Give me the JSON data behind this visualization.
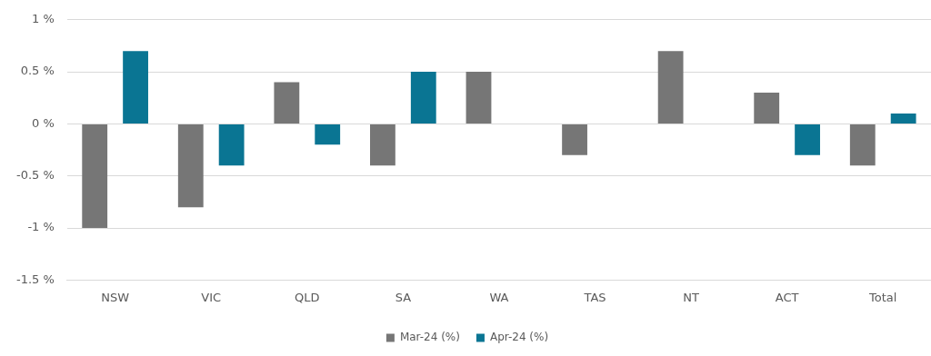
{
  "chart_data": {
    "type": "bar",
    "categories": [
      "NSW",
      "VIC",
      "QLD",
      "SA",
      "WA",
      "TAS",
      "NT",
      "ACT",
      "Total"
    ],
    "series": [
      {
        "name": "Mar-24 (%)",
        "color": "#767676",
        "values": [
          -1,
          -0.8,
          0.4,
          -0.4,
          0.5,
          -0.3,
          0.7,
          0.3,
          -0.4
        ]
      },
      {
        "name": "Apr-24 (%)",
        "color": "#0a7593",
        "values": [
          0.7,
          -0.4,
          -0.2,
          0.5,
          0,
          0,
          0,
          -0.3,
          0.1
        ]
      }
    ],
    "ylim": [
      -1.5,
      1
    ],
    "yticks": [
      {
        "value": -1.5,
        "label": "-1.5 %"
      },
      {
        "value": -1,
        "label": "-1 %"
      },
      {
        "value": -0.5,
        "label": "-0.5 %"
      },
      {
        "value": 0,
        "label": "0 %"
      },
      {
        "value": 0.5,
        "label": "0.5 %"
      },
      {
        "value": 1,
        "label": "1 %"
      }
    ],
    "grid": "y",
    "legend": "bottom"
  }
}
